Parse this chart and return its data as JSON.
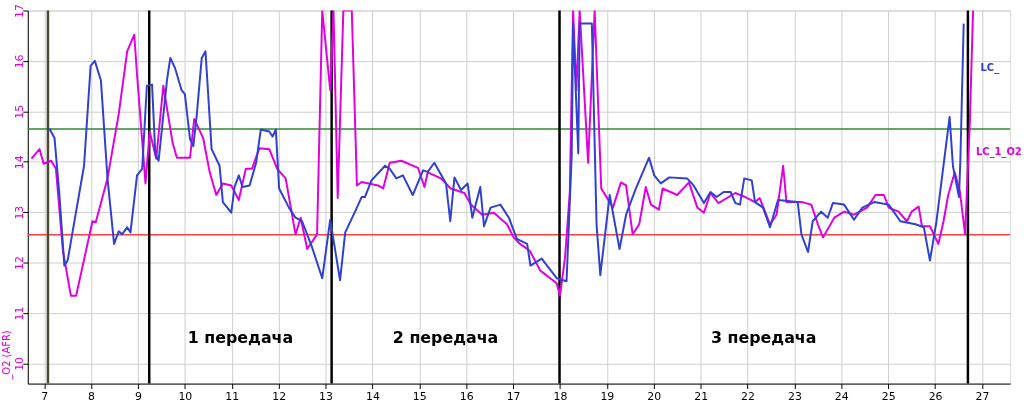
{
  "chart_data": {
    "type": "line",
    "ylabel": "_O2 (AFR)",
    "xlim": [
      6.65,
      27.6
    ],
    "ylim": [
      9.6,
      17
    ],
    "xticks": [
      7,
      8,
      9,
      10,
      11,
      12,
      13,
      14,
      15,
      16,
      17,
      18,
      19,
      20,
      21,
      22,
      23,
      24,
      25,
      26,
      27
    ],
    "yticks": [
      10,
      11,
      12,
      13,
      14,
      15,
      16,
      17
    ],
    "grid": true,
    "marker": "none",
    "line_style": "solid",
    "series": [
      {
        "name": "LC_1_O2",
        "color": "#e000e0",
        "x": [
          6.73,
          6.9,
          6.99,
          7.15,
          7.25,
          7.4,
          7.57,
          7.68,
          8.03,
          8.1,
          8.35,
          8.59,
          8.77,
          8.92,
          8.98,
          9.16,
          9.25,
          9.39,
          9.54,
          9.74,
          9.83,
          10.11,
          10.2,
          10.39,
          10.53,
          10.67,
          10.81,
          10.99,
          11.15,
          11.3,
          11.43,
          11.59,
          11.8,
          11.97,
          12.15,
          12.36,
          12.47,
          12.61,
          12.82,
          12.93,
          13.1,
          13.17,
          13.26,
          13.38,
          13.56,
          13.67,
          13.77,
          14.12,
          14.23,
          14.37,
          14.62,
          14.97,
          15.11,
          15.18,
          15.46,
          15.67,
          15.96,
          16.1,
          16.34,
          16.59,
          16.87,
          17.01,
          17.15,
          17.36,
          17.58,
          17.93,
          18.0,
          18.11,
          18.21,
          18.28,
          18.35,
          18.42,
          18.6,
          18.74,
          18.88,
          19.13,
          19.3,
          19.41,
          19.55,
          19.69,
          19.83,
          19.94,
          20.11,
          20.19,
          20.5,
          20.75,
          20.93,
          21.07,
          21.21,
          21.38,
          21.74,
          21.95,
          22.16,
          22.26,
          22.48,
          22.62,
          22.76,
          22.83,
          23.15,
          23.36,
          23.5,
          23.61,
          23.85,
          24.06,
          24.27,
          24.55,
          24.73,
          24.91,
          25.01,
          25.22,
          25.4,
          25.5,
          25.65,
          25.72,
          25.89,
          26.07,
          26.18,
          26.28,
          26.42,
          26.53,
          26.64,
          26.74,
          26.81
        ],
        "values": [
          14.06,
          14.25,
          13.96,
          14.02,
          13.86,
          12.23,
          11.34,
          11.34,
          12.82,
          12.8,
          13.67,
          14.95,
          16.19,
          16.52,
          15.73,
          13.57,
          14.6,
          14.06,
          15.51,
          14.37,
          14.08,
          14.08,
          14.85,
          14.47,
          13.79,
          13.34,
          13.57,
          13.53,
          13.24,
          13.86,
          13.86,
          14.27,
          14.25,
          13.86,
          13.67,
          12.56,
          12.89,
          12.27,
          12.56,
          17,
          15.42,
          17,
          13.28,
          17,
          17,
          13.53,
          13.6,
          13.53,
          13.47,
          13.98,
          14.02,
          13.88,
          13.5,
          13.79,
          13.67,
          13.47,
          13.38,
          13.15,
          12.95,
          12.99,
          12.76,
          12.5,
          12.37,
          12.23,
          11.84,
          11.59,
          11.34,
          12.12,
          13.4,
          17,
          15.42,
          17,
          13.98,
          17,
          13.47,
          13.09,
          13.59,
          13.53,
          12.56,
          12.76,
          13.5,
          13.15,
          13.05,
          13.47,
          13.34,
          13.59,
          13.09,
          12.99,
          13.38,
          13.18,
          13.38,
          13.3,
          13.2,
          13.28,
          12.76,
          12.95,
          13.92,
          13.2,
          13.2,
          13.15,
          12.76,
          12.5,
          12.89,
          13.01,
          12.95,
          13.09,
          13.34,
          13.34,
          13.09,
          13.01,
          12.82,
          13.01,
          13.11,
          12.72,
          12.72,
          12.37,
          12.82,
          13.34,
          13.79,
          13.4,
          12.56,
          14.76,
          17
        ]
      },
      {
        "name": "LC_",
        "color": "#3040d0",
        "x": [
          7.11,
          7.22,
          7.32,
          7.43,
          7.5,
          7.68,
          7.85,
          7.99,
          8.08,
          8.21,
          8.35,
          8.49,
          8.59,
          8.66,
          8.77,
          8.84,
          8.98,
          9.09,
          9.19,
          9.3,
          9.37,
          9.44,
          9.62,
          9.69,
          9.79,
          9.93,
          10.0,
          10.11,
          10.18,
          10.25,
          10.36,
          10.44,
          10.57,
          10.74,
          10.81,
          10.99,
          11.06,
          11.15,
          11.23,
          11.38,
          11.52,
          11.62,
          11.8,
          11.87,
          11.94,
          12.01,
          12.22,
          12.36,
          12.5,
          12.71,
          12.93,
          13.1,
          13.31,
          13.42,
          13.63,
          13.77,
          13.84,
          13.98,
          14.27,
          14.37,
          14.51,
          14.65,
          14.86,
          15.08,
          15.18,
          15.32,
          15.57,
          15.66,
          15.75,
          15.89,
          16.03,
          16.13,
          16.3,
          16.38,
          16.52,
          16.73,
          16.91,
          17.08,
          17.3,
          17.37,
          17.61,
          17.93,
          18.14,
          18.25,
          18.28,
          18.39,
          18.42,
          18.68,
          18.78,
          18.86,
          19.06,
          19.27,
          19.41,
          19.62,
          19.9,
          20.01,
          20.15,
          20.33,
          20.71,
          20.85,
          21.07,
          21.21,
          21.34,
          21.49,
          21.64,
          21.74,
          21.84,
          21.93,
          22.09,
          22.16,
          22.33,
          22.48,
          22.65,
          23.07,
          23.15,
          23.29,
          23.39,
          23.57,
          23.71,
          23.82,
          24.06,
          24.27,
          24.45,
          24.7,
          25.01,
          25.26,
          25.58,
          25.76,
          25.89,
          26.03,
          26.31,
          26.38,
          26.51,
          26.54,
          26.61
        ],
        "values": [
          14.66,
          14.47,
          13.4,
          11.94,
          12.04,
          13.01,
          13.92,
          15.9,
          16.0,
          15.61,
          13.67,
          12.37,
          12.62,
          12.56,
          12.7,
          12.6,
          13.73,
          13.86,
          15.51,
          15.53,
          14.16,
          14.02,
          15.63,
          16.06,
          15.86,
          15.42,
          15.34,
          14.45,
          14.31,
          14.89,
          16.06,
          16.19,
          14.25,
          13.92,
          13.2,
          12.99,
          13.5,
          13.73,
          13.5,
          13.53,
          13.98,
          14.64,
          14.6,
          14.5,
          14.64,
          13.47,
          13.09,
          12.89,
          12.82,
          12.31,
          11.69,
          12.85,
          11.65,
          12.6,
          13.01,
          13.3,
          13.3,
          13.63,
          13.92,
          13.86,
          13.67,
          13.73,
          13.34,
          13.83,
          13.8,
          13.98,
          13.57,
          12.82,
          13.69,
          13.44,
          13.57,
          12.89,
          13.5,
          12.72,
          13.09,
          13.15,
          12.89,
          12.47,
          12.37,
          11.94,
          12.08,
          11.69,
          11.63,
          14.12,
          16.74,
          14.17,
          16.74,
          16.74,
          12.76,
          11.75,
          13.34,
          12.27,
          12.95,
          13.47,
          14.08,
          13.73,
          13.57,
          13.69,
          13.67,
          13.53,
          13.18,
          13.4,
          13.3,
          13.4,
          13.4,
          13.18,
          13.15,
          13.67,
          13.63,
          13.2,
          13.09,
          12.7,
          13.24,
          13.2,
          12.56,
          12.21,
          12.82,
          13.01,
          12.89,
          13.18,
          13.15,
          12.85,
          13.09,
          13.2,
          13.15,
          12.82,
          12.76,
          12.7,
          12.04,
          12.82,
          14.89,
          13.92,
          13.3,
          14.06,
          16.74
        ]
      }
    ],
    "ref_lines": [
      {
        "axis": "y",
        "value": 14.65,
        "color": "#2e8b2e"
      },
      {
        "axis": "y",
        "value": 12.55,
        "color": "#ff4040"
      },
      {
        "axis": "x",
        "value": 7.08,
        "color": "#4a4a30"
      },
      {
        "axis": "x",
        "value": 9.24,
        "color": "#000000"
      },
      {
        "axis": "x",
        "value": 13.13,
        "color": "#000000"
      },
      {
        "axis": "x",
        "value": 17.99,
        "color": "#000000"
      },
      {
        "axis": "x",
        "value": 26.7,
        "color": "#000000"
      }
    ],
    "annotations": [
      "1 передача",
      "2 передача",
      "3 передача"
    ]
  }
}
